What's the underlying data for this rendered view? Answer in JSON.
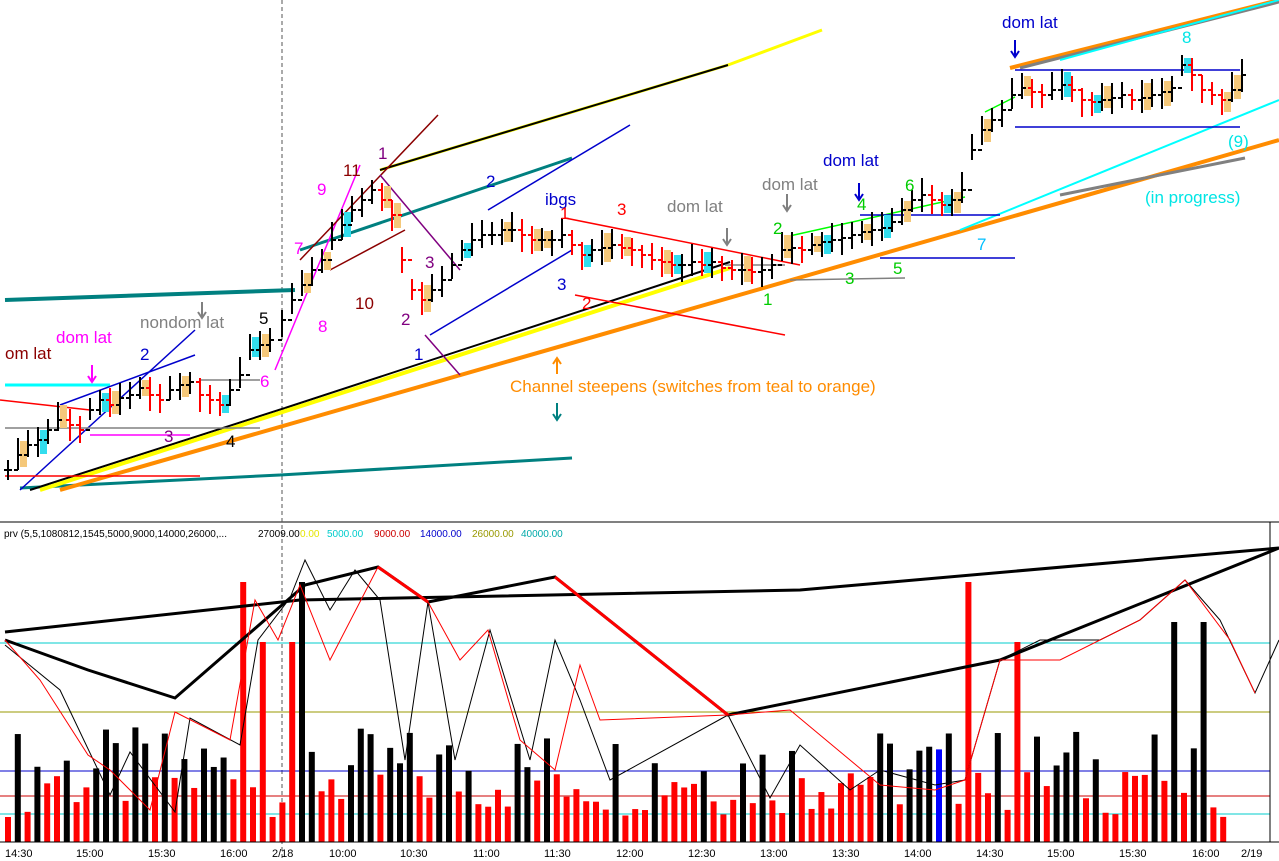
{
  "chart_data": [
    {
      "type": "candlestick",
      "title": "",
      "annotations": [
        {
          "text": "om lat",
          "color": "#8b0000"
        },
        {
          "text": "dom lat",
          "color": "#ff00ff"
        },
        {
          "text": "nondom lat",
          "color": "#808080"
        },
        {
          "text": "2",
          "color": "#0000cc"
        },
        {
          "text": "3",
          "color": "#800080"
        },
        {
          "text": "5",
          "color": "#000000"
        },
        {
          "text": "6",
          "color": "#ff00ff"
        },
        {
          "text": "7",
          "color": "#ff00ff"
        },
        {
          "text": "8",
          "color": "#ff00ff"
        },
        {
          "text": "9",
          "color": "#ff00ff"
        },
        {
          "text": "11",
          "color": "#8b0000"
        },
        {
          "text": "1",
          "color": "#800080"
        },
        {
          "text": "10",
          "color": "#8b0000"
        },
        {
          "text": "2",
          "color": "#800080"
        },
        {
          "text": "3",
          "color": "#800080"
        },
        {
          "text": "1",
          "color": "#0000cc"
        },
        {
          "text": "2",
          "color": "#0000cc"
        },
        {
          "text": "ibgs",
          "color": "#0000cc"
        },
        {
          "text": "3",
          "color": "#0000cc"
        },
        {
          "text": "1",
          "color": "#ff0000"
        },
        {
          "text": "3",
          "color": "#ff0000"
        },
        {
          "text": "2",
          "color": "#ff0000"
        },
        {
          "text": "dom lat",
          "color": "#808080"
        },
        {
          "text": "dom lat",
          "color": "#808080"
        },
        {
          "text": "dom lat",
          "color": "#0000cc"
        },
        {
          "text": "2",
          "color": "#00cc00"
        },
        {
          "text": "1",
          "color": "#00cc00"
        },
        {
          "text": "3",
          "color": "#00cc00"
        },
        {
          "text": "4",
          "color": "#00cc00"
        },
        {
          "text": "5",
          "color": "#00cc00"
        },
        {
          "text": "6",
          "color": "#00cc00"
        },
        {
          "text": "7",
          "color": "#00bfff"
        },
        {
          "text": "dom lat",
          "color": "#0000cc"
        },
        {
          "text": "8",
          "color": "#00e5e5"
        },
        {
          "text": "(9)",
          "color": "#00e5e5"
        },
        {
          "text": "(in progress)",
          "color": "#00e5e5"
        },
        {
          "text": "Channel steepens (switches from teal to orange)",
          "color": "#ff8c00"
        },
        {
          "text": "4",
          "color": "#000000"
        }
      ]
    },
    {
      "type": "bar",
      "title": "",
      "legend": {
        "prefix": "prv (5,5,1080812,1545,5000,9000,14000,26000,...",
        "entries": [
          {
            "text": "27009.00",
            "color": "#000000"
          },
          {
            "text": "0.00",
            "color": "#e5e500"
          },
          {
            "text": "5000.00",
            "color": "#00cccc"
          },
          {
            "text": "9000.00",
            "color": "#cc0000"
          },
          {
            "text": "14000.00",
            "color": "#0000cc"
          },
          {
            "text": "26000.00",
            "color": "#999900"
          },
          {
            "text": "40000.00",
            "color": "#00aaaa"
          }
        ]
      },
      "x_tick_labels": [
        "14:30",
        "15:00",
        "15:30",
        "16:00",
        "2/18",
        "10:00",
        "10:30",
        "11:00",
        "11:30",
        "12:00",
        "12:30",
        "13:00",
        "13:30",
        "14:00",
        "14:30",
        "15:00",
        "15:30",
        "16:00",
        "2/19"
      ],
      "colors": {
        "up": "#000000",
        "down": "#ff0000",
        "special": "#0000ff"
      }
    }
  ],
  "ui": {
    "colors": {
      "teal": "#008080",
      "orange": "#ff8c00",
      "yellow": "#ffff00",
      "cyan": "#00ffff",
      "gold": "#f5c87a",
      "aqua": "#33ddee"
    }
  }
}
